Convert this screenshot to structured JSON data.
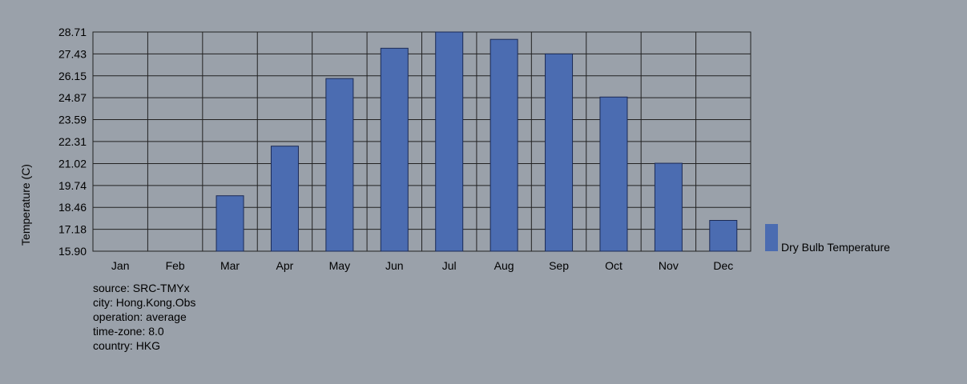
{
  "chart_data": {
    "type": "bar",
    "ylabel": "Temperature (C)",
    "categories": [
      "Jan",
      "Feb",
      "Mar",
      "Apr",
      "May",
      "Jun",
      "Jul",
      "Aug",
      "Sep",
      "Oct",
      "Nov",
      "Dec"
    ],
    "yticks": [
      "15.90",
      "17.18",
      "18.46",
      "19.74",
      "21.02",
      "22.31",
      "23.59",
      "24.87",
      "26.15",
      "27.43",
      "28.71"
    ],
    "ylim": [
      15.9,
      28.71
    ],
    "grid": true,
    "legend_position": "right",
    "series": [
      {
        "name": "Dry Bulb Temperature",
        "color": "#4b6cb1",
        "values": [
          15.9,
          15.9,
          19.14,
          22.04,
          25.99,
          27.76,
          28.71,
          28.28,
          27.43,
          24.91,
          21.04,
          17.7
        ]
      }
    ]
  },
  "metadata": {
    "source": "source: SRC-TMYx",
    "city": "city: Hong.Kong.Obs",
    "operation": "operation: average",
    "time_zone": "time-zone: 8.0",
    "country": "country: HKG"
  }
}
